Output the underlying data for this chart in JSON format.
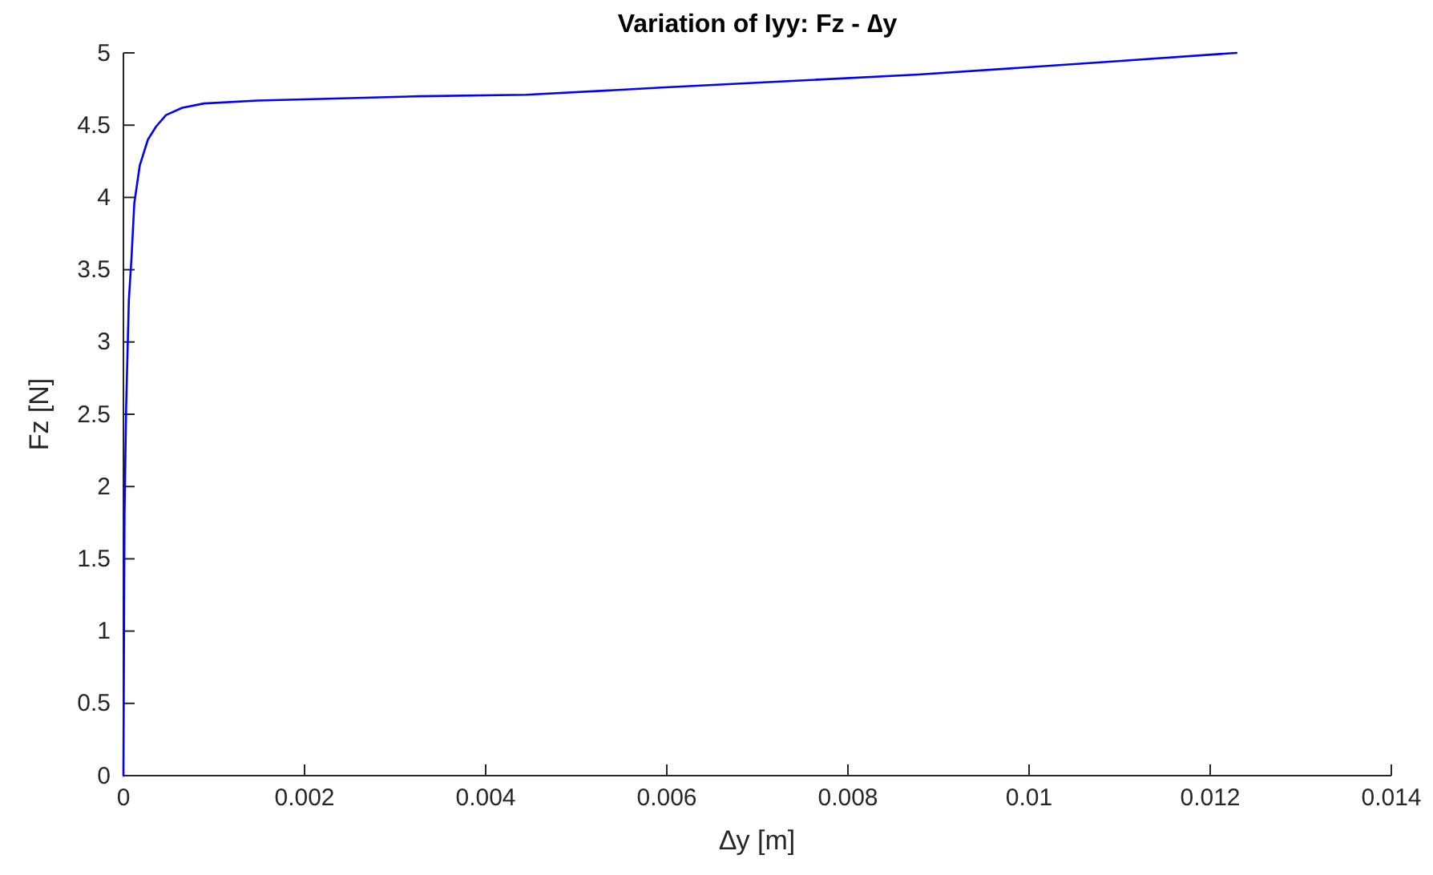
{
  "chart_data": {
    "type": "line",
    "title": "Variation of Iyy: Fz - ∆y",
    "xlabel": "∆y [m]",
    "ylabel": "Fz [N]",
    "xlim": [
      0,
      0.014
    ],
    "ylim": [
      0,
      5
    ],
    "xticks": [
      0,
      0.002,
      0.004,
      0.006,
      0.008,
      0.01,
      0.012,
      0.014
    ],
    "yticks": [
      0,
      0.5,
      1,
      1.5,
      2,
      2.5,
      3,
      3.5,
      4,
      4.5,
      5
    ],
    "grid": false,
    "marker": "none",
    "line_style": "solid",
    "series": [
      {
        "color": "#0000ff",
        "x": [
          0,
          1.2e-05,
          3e-05,
          6e-05,
          9e-05,
          0.00012,
          0.00018,
          0.00027,
          0.00036,
          0.00047,
          0.00065,
          0.00089,
          0.00148,
          0.00208,
          0.00326,
          0.00445,
          0.00594,
          0.00878,
          0.01092,
          0.01229
        ],
        "values": [
          0,
          1.81,
          2.55,
          3.29,
          3.59,
          3.96,
          4.22,
          4.4,
          4.49,
          4.57,
          4.62,
          4.65,
          4.67,
          4.68,
          4.7,
          4.71,
          4.76,
          4.85,
          4.94,
          5.0
        ]
      }
    ]
  }
}
